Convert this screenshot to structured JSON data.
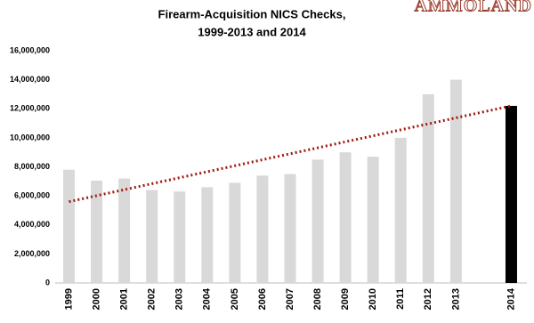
{
  "chart_data": {
    "type": "bar",
    "title": [
      "Firearm-Acquisition NICS Checks,",
      "1999-2013 and 2014"
    ],
    "watermark": "AMMOLAND",
    "categories": [
      "1999",
      "2000",
      "2001",
      "2002",
      "2003",
      "2004",
      "2005",
      "2006",
      "2007",
      "2008",
      "2009",
      "2010",
      "2011",
      "2012",
      "2013",
      null,
      "2014"
    ],
    "values": [
      7800000,
      7050000,
      7200000,
      6400000,
      6300000,
      6600000,
      6900000,
      7400000,
      7500000,
      8500000,
      9000000,
      8700000,
      10000000,
      13000000,
      14000000,
      null,
      12200000
    ],
    "colors": [
      "#d9d9d9",
      "#d9d9d9",
      "#d9d9d9",
      "#d9d9d9",
      "#d9d9d9",
      "#d9d9d9",
      "#d9d9d9",
      "#d9d9d9",
      "#d9d9d9",
      "#d9d9d9",
      "#d9d9d9",
      "#d9d9d9",
      "#d9d9d9",
      "#d9d9d9",
      "#d9d9d9",
      null,
      "#000000"
    ],
    "trendline": {
      "values": [
        5600000,
        12200000
      ],
      "color": "#a01a10"
    },
    "ylim": [
      0,
      16000000
    ],
    "yticks": [
      0,
      {
        "value": 2000000,
        "label": "2,000,000"
      },
      {
        "value": 4000000,
        "label": "4,000,000"
      },
      {
        "value": 6000000,
        "label": "6,000,000"
      },
      {
        "value": 8000000,
        "label": "8,000,000"
      },
      {
        "value": 10000000,
        "label": "10,000,000"
      },
      {
        "value": 12000000,
        "label": "12,000,000"
      },
      {
        "value": 14000000,
        "label": "14,000,000"
      },
      {
        "value": 16000000,
        "label": "16,000,000"
      }
    ],
    "grid": false
  }
}
